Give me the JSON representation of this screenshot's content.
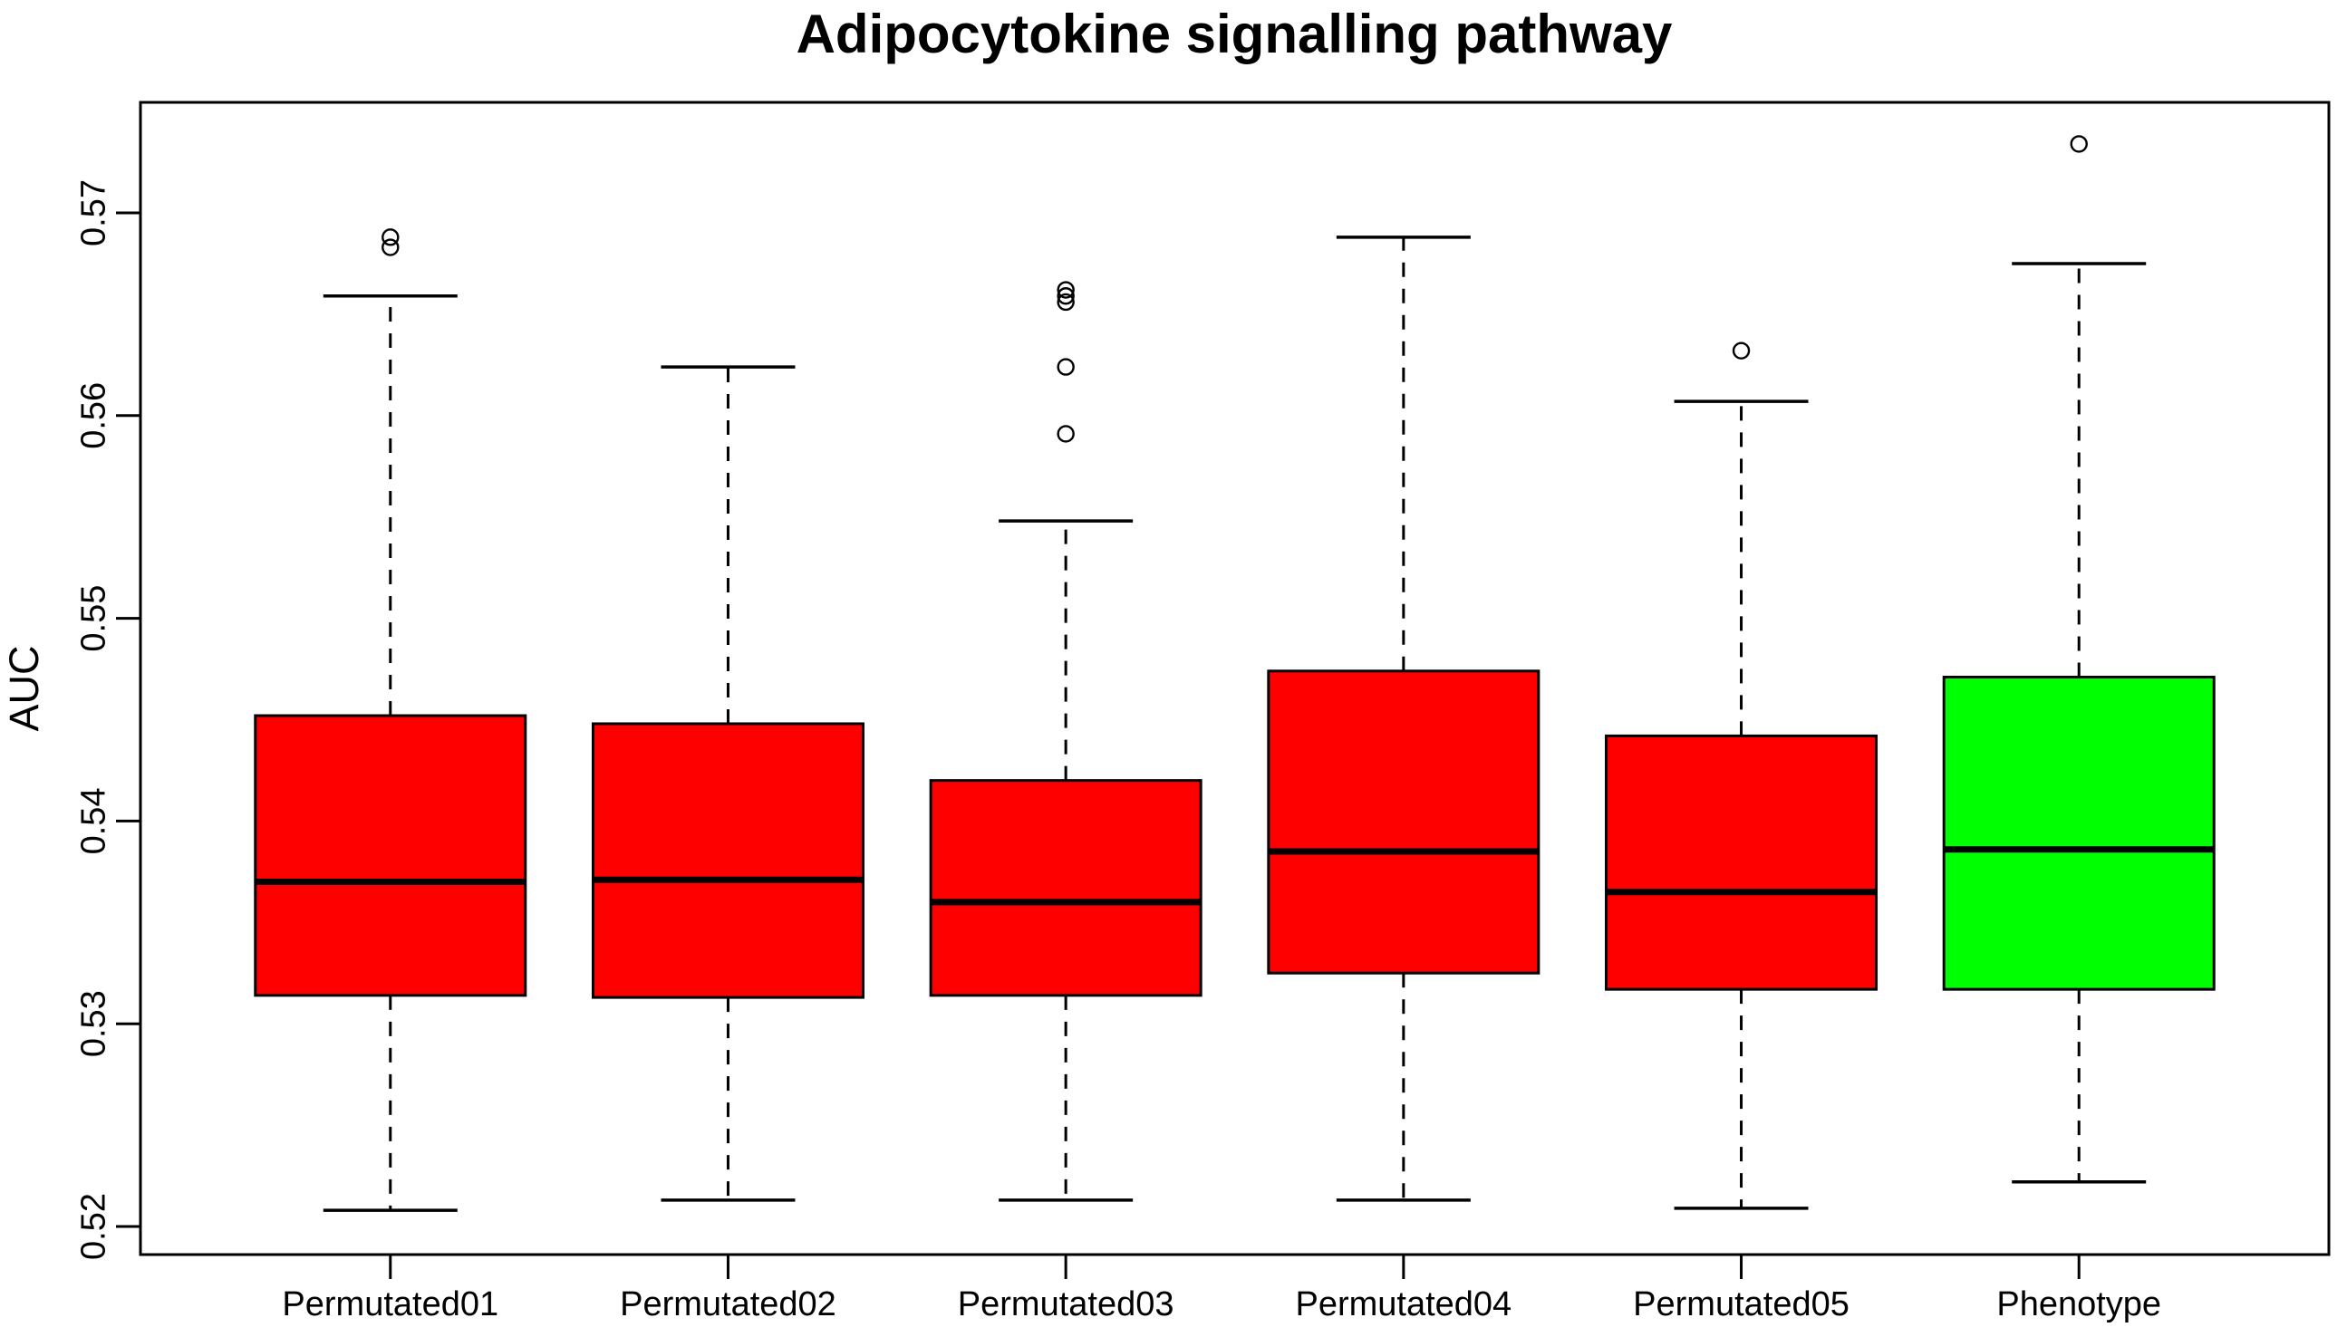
{
  "chart_data": {
    "type": "boxplot",
    "title": "Adipocytokine signalling pathway",
    "xlabel": "",
    "ylabel": "AUC",
    "yticks": [
      0.52,
      0.53,
      0.54,
      0.55,
      0.56,
      0.57
    ],
    "ylim": [
      0.5186,
      0.5755
    ],
    "grid": false,
    "legend": "none",
    "box_border_color": "#000000",
    "categories": [
      "Permutated01",
      "Permutated02",
      "Permutated03",
      "Permutated04",
      "Permutated05",
      "Phenotype"
    ],
    "series": [
      {
        "name": "Permutated01",
        "color": "#FF0000",
        "min": 0.5208,
        "q1": 0.5314,
        "median": 0.537,
        "q3": 0.5452,
        "max": 0.5659,
        "outliers": [
          0.5683,
          0.5688
        ]
      },
      {
        "name": "Permutated02",
        "color": "#FF0000",
        "min": 0.5213,
        "q1": 0.5313,
        "median": 0.5371,
        "q3": 0.5448,
        "max": 0.5624,
        "outliers": []
      },
      {
        "name": "Permutated03",
        "color": "#FF0000",
        "min": 0.5213,
        "q1": 0.5314,
        "median": 0.536,
        "q3": 0.542,
        "max": 0.5548,
        "outliers": [
          0.5591,
          0.5624,
          0.5656,
          0.5659,
          0.5662
        ]
      },
      {
        "name": "Permutated04",
        "color": "#FF0000",
        "min": 0.5213,
        "q1": 0.5325,
        "median": 0.5385,
        "q3": 0.5474,
        "max": 0.5688,
        "outliers": []
      },
      {
        "name": "Permutated05",
        "color": "#FF0000",
        "min": 0.5209,
        "q1": 0.5317,
        "median": 0.5365,
        "q3": 0.5442,
        "max": 0.5607,
        "outliers": [
          0.5632
        ]
      },
      {
        "name": "Phenotype",
        "color": "#00FF00",
        "min": 0.5222,
        "q1": 0.5317,
        "median": 0.5386,
        "q3": 0.5471,
        "max": 0.5675,
        "outliers": [
          0.5734
        ]
      }
    ]
  }
}
